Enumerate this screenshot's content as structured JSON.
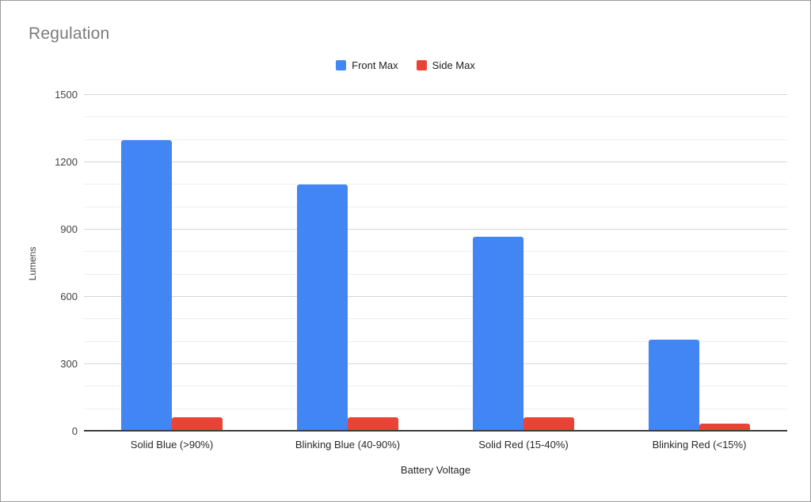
{
  "window": {
    "background": "#ffffff",
    "border_color": "#9b9b9b"
  },
  "chart_data": {
    "type": "bar",
    "title": "Regulation",
    "categories": [
      "Solid Blue (>90%)",
      "Blinking Blue (40-90%)",
      "Solid Red (15-40%)",
      "Blinking Red (<15%)"
    ],
    "series": [
      {
        "name": "Front Max",
        "color": "#4285F4",
        "values": [
          1300,
          1100,
          870,
          410
        ]
      },
      {
        "name": "Side Max",
        "color": "#EA4335",
        "values": [
          65,
          65,
          65,
          35
        ]
      }
    ],
    "xlabel": "Battery Voltage",
    "ylabel": "Lumens",
    "ylim": [
      0,
      1500
    ],
    "y_major_ticks": [
      0,
      300,
      600,
      900,
      1200,
      1500
    ],
    "y_minor_step": 100,
    "grid": true,
    "legend_position": "top-center",
    "styles": {
      "title_color": "#7b7b7b",
      "tick_color": "#424242",
      "major_grid_color": "#d6d6d6",
      "minor_grid_color": "#efefef",
      "axis_line_color": "#3c3c3c",
      "legend_text_color": "#212121"
    }
  }
}
